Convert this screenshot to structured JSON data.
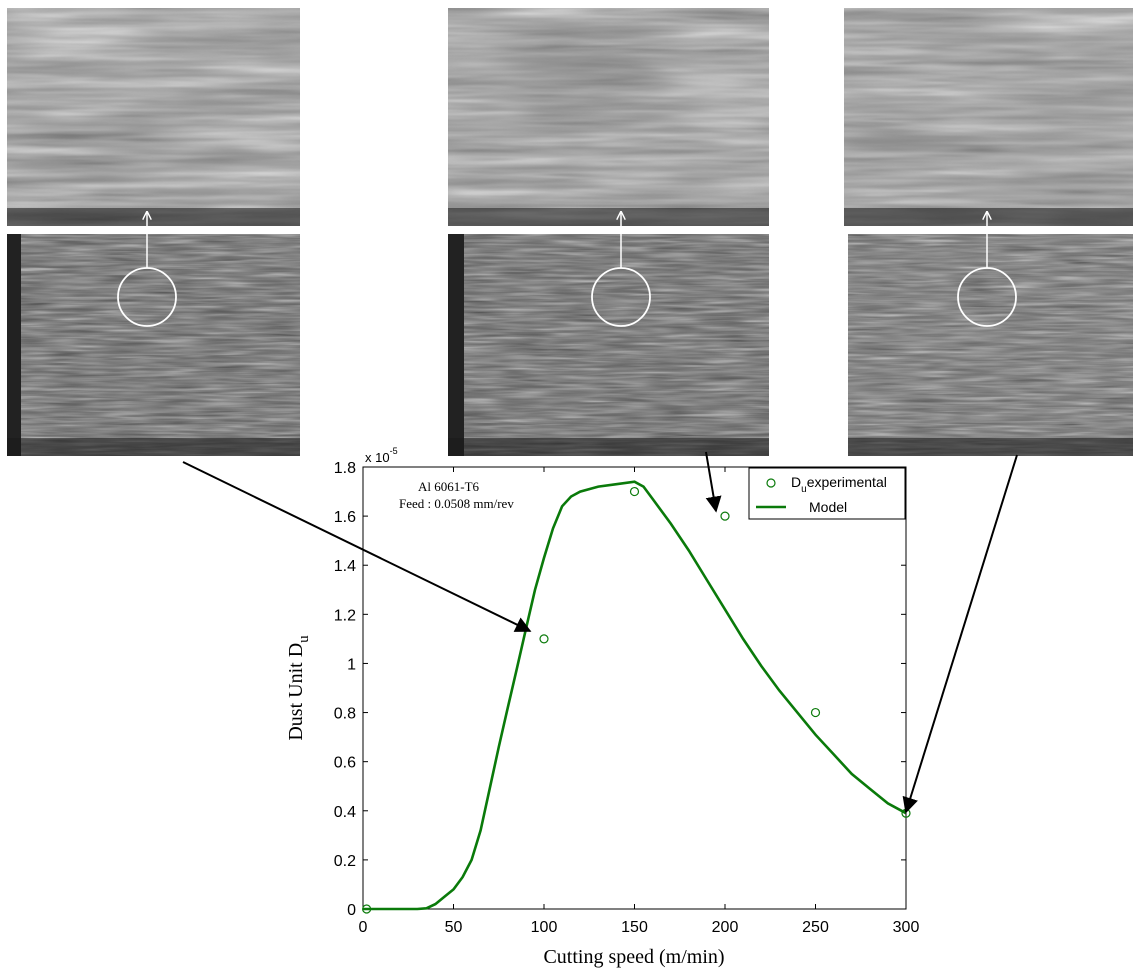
{
  "chart_data": {
    "type": "scatter",
    "xlabel": "Cutting speed (m/min)",
    "ylabel": "Dust Unit D",
    "ylabel_subscript": "u",
    "y_multiplier": "x 10",
    "y_multiplier_exponent": "-5",
    "xlim": [
      0,
      300
    ],
    "ylim": [
      0,
      1.8
    ],
    "x_ticks": [
      0,
      50,
      100,
      150,
      200,
      250,
      300
    ],
    "y_ticks": [
      0,
      0.2,
      0.4,
      0.6,
      0.8,
      1,
      1.2,
      1.4,
      1.6,
      1.8
    ],
    "grid": false,
    "legend_position": "top-right",
    "annotations": [
      "Al 6061-T6",
      "Feed : 0.0508 mm/rev"
    ],
    "legend": {
      "experimental_main": "D",
      "experimental_sub": "u",
      "experimental_rest": "experimental",
      "model": "Model"
    },
    "series": [
      {
        "name": "Duexperimental",
        "kind": "points",
        "x": [
          2,
          100,
          150,
          200,
          250,
          300
        ],
        "y": [
          0.0,
          1.1,
          1.7,
          1.6,
          0.8,
          0.39
        ]
      },
      {
        "name": "Model",
        "kind": "line",
        "x": [
          0,
          10,
          20,
          30,
          35,
          40,
          45,
          50,
          55,
          60,
          65,
          70,
          75,
          80,
          85,
          90,
          95,
          100,
          105,
          110,
          115,
          120,
          130,
          140,
          150,
          155,
          160,
          170,
          180,
          190,
          200,
          210,
          220,
          230,
          240,
          250,
          260,
          270,
          280,
          290,
          300
        ],
        "y": [
          0,
          0,
          0,
          0,
          0.003,
          0.02,
          0.05,
          0.08,
          0.13,
          0.2,
          0.32,
          0.49,
          0.66,
          0.82,
          0.98,
          1.14,
          1.3,
          1.43,
          1.55,
          1.64,
          1.68,
          1.7,
          1.72,
          1.73,
          1.74,
          1.72,
          1.67,
          1.57,
          1.46,
          1.34,
          1.22,
          1.1,
          0.99,
          0.89,
          0.8,
          0.71,
          0.63,
          0.55,
          0.49,
          0.43,
          0.39
        ]
      }
    ],
    "colors": {
      "series": "#0a7a0a",
      "axis": "#000000",
      "callout": "#000000"
    }
  }
}
